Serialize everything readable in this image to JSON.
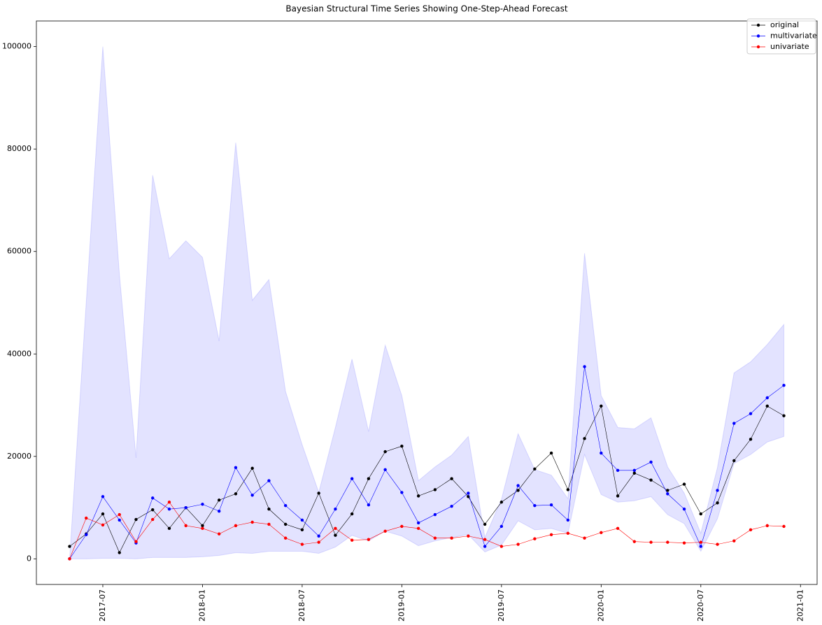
{
  "chart_data": {
    "type": "line",
    "title": "Bayesian Structural Time Series Showing One-Step-Ahead Forecast",
    "x": [
      "2017-05",
      "2017-06",
      "2017-07",
      "2017-08",
      "2017-09",
      "2017-10",
      "2017-11",
      "2017-12",
      "2018-01",
      "2018-02",
      "2018-03",
      "2018-04",
      "2018-05",
      "2018-06",
      "2018-07",
      "2018-08",
      "2018-09",
      "2018-10",
      "2018-11",
      "2018-12",
      "2019-01",
      "2019-02",
      "2019-03",
      "2019-04",
      "2019-05",
      "2019-06",
      "2019-07",
      "2019-08",
      "2019-09",
      "2019-10",
      "2019-11",
      "2019-12",
      "2020-01",
      "2020-02",
      "2020-03",
      "2020-04",
      "2020-05",
      "2020-06",
      "2020-07",
      "2020-08",
      "2020-09",
      "2020-10",
      "2020-11",
      "2020-12"
    ],
    "series": [
      {
        "name": "original",
        "color": "#000000",
        "values": [
          2430,
          4860,
          8770,
          1210,
          7690,
          9580,
          5940,
          9990,
          6480,
          11470,
          12690,
          17680,
          9720,
          6750,
          5670,
          12820,
          4590,
          8770,
          15650,
          20920,
          22000,
          12280,
          13500,
          15650,
          12150,
          6750,
          11070,
          13360,
          17540,
          20650,
          13500,
          23480,
          29820,
          12280,
          16730,
          15380,
          13360,
          14570,
          8770,
          10930,
          19160,
          23350,
          29820,
          27940
        ]
      },
      {
        "name": "multivariate",
        "color": "#0000ff",
        "values": [
          0,
          4720,
          12150,
          7560,
          3100,
          11880,
          9720,
          9990,
          10660,
          9310,
          17810,
          12420,
          15250,
          10390,
          7560,
          4450,
          9720,
          15650,
          10530,
          17410,
          12960,
          7020,
          8640,
          10260,
          12820,
          2430,
          6340,
          14300,
          10390,
          10530,
          7560,
          37520,
          20650,
          17270,
          17270,
          18890,
          12690,
          9720,
          2430,
          13360,
          26450,
          28340,
          31440,
          33870
        ]
      },
      {
        "name": "univariate",
        "color": "#ff0000",
        "values": [
          0,
          7960,
          6610,
          8640,
          3370,
          7690,
          11070,
          6480,
          5940,
          4860,
          6480,
          7150,
          6750,
          4050,
          2830,
          3240,
          5940,
          3640,
          3780,
          5400,
          6340,
          5940,
          4050,
          4050,
          4450,
          3780,
          2430,
          2830,
          3910,
          4720,
          4990,
          4050,
          5130,
          5940,
          3370,
          3240,
          3240,
          3100,
          3240,
          2830,
          3510,
          5670,
          6480,
          6340
        ]
      }
    ],
    "band": {
      "color": "#0000ff",
      "upper": [
        0,
        50000,
        100000,
        55460,
        19700,
        74900,
        58570,
        62080,
        58840,
        42510,
        81240,
        50470,
        54520,
        32660,
        22270,
        12960,
        25640,
        39000,
        24830,
        41700,
        31850,
        15250,
        17950,
        20240,
        23890,
        4180,
        11610,
        24430,
        17410,
        16330,
        11740,
        59650,
        31850,
        25640,
        25370,
        27530,
        17950,
        12820,
        4990,
        17810,
        36300,
        38460,
        41840,
        45750
      ],
      "lower": [
        0,
        0,
        100,
        100,
        0,
        270,
        270,
        270,
        400,
        670,
        1210,
        1080,
        1480,
        1480,
        1480,
        1080,
        2290,
        4590,
        3510,
        5400,
        4450,
        2560,
        3510,
        4180,
        4720,
        1350,
        2700,
        7420,
        5670,
        5940,
        4990,
        20380,
        12550,
        11070,
        11340,
        12150,
        8640,
        6880,
        1480,
        7830,
        18620,
        20380,
        22810,
        23890
      ]
    },
    "xlim": [
      "2017-03",
      "2021-02"
    ],
    "xticks": [
      "2017-07",
      "2018-01",
      "2018-07",
      "2019-01",
      "2019-07",
      "2020-01",
      "2020-07",
      "2021-01"
    ],
    "ylim": [
      -5000,
      105000
    ],
    "yticks": [
      0,
      20000,
      40000,
      60000,
      80000,
      100000
    ],
    "legend": "upper right"
  }
}
